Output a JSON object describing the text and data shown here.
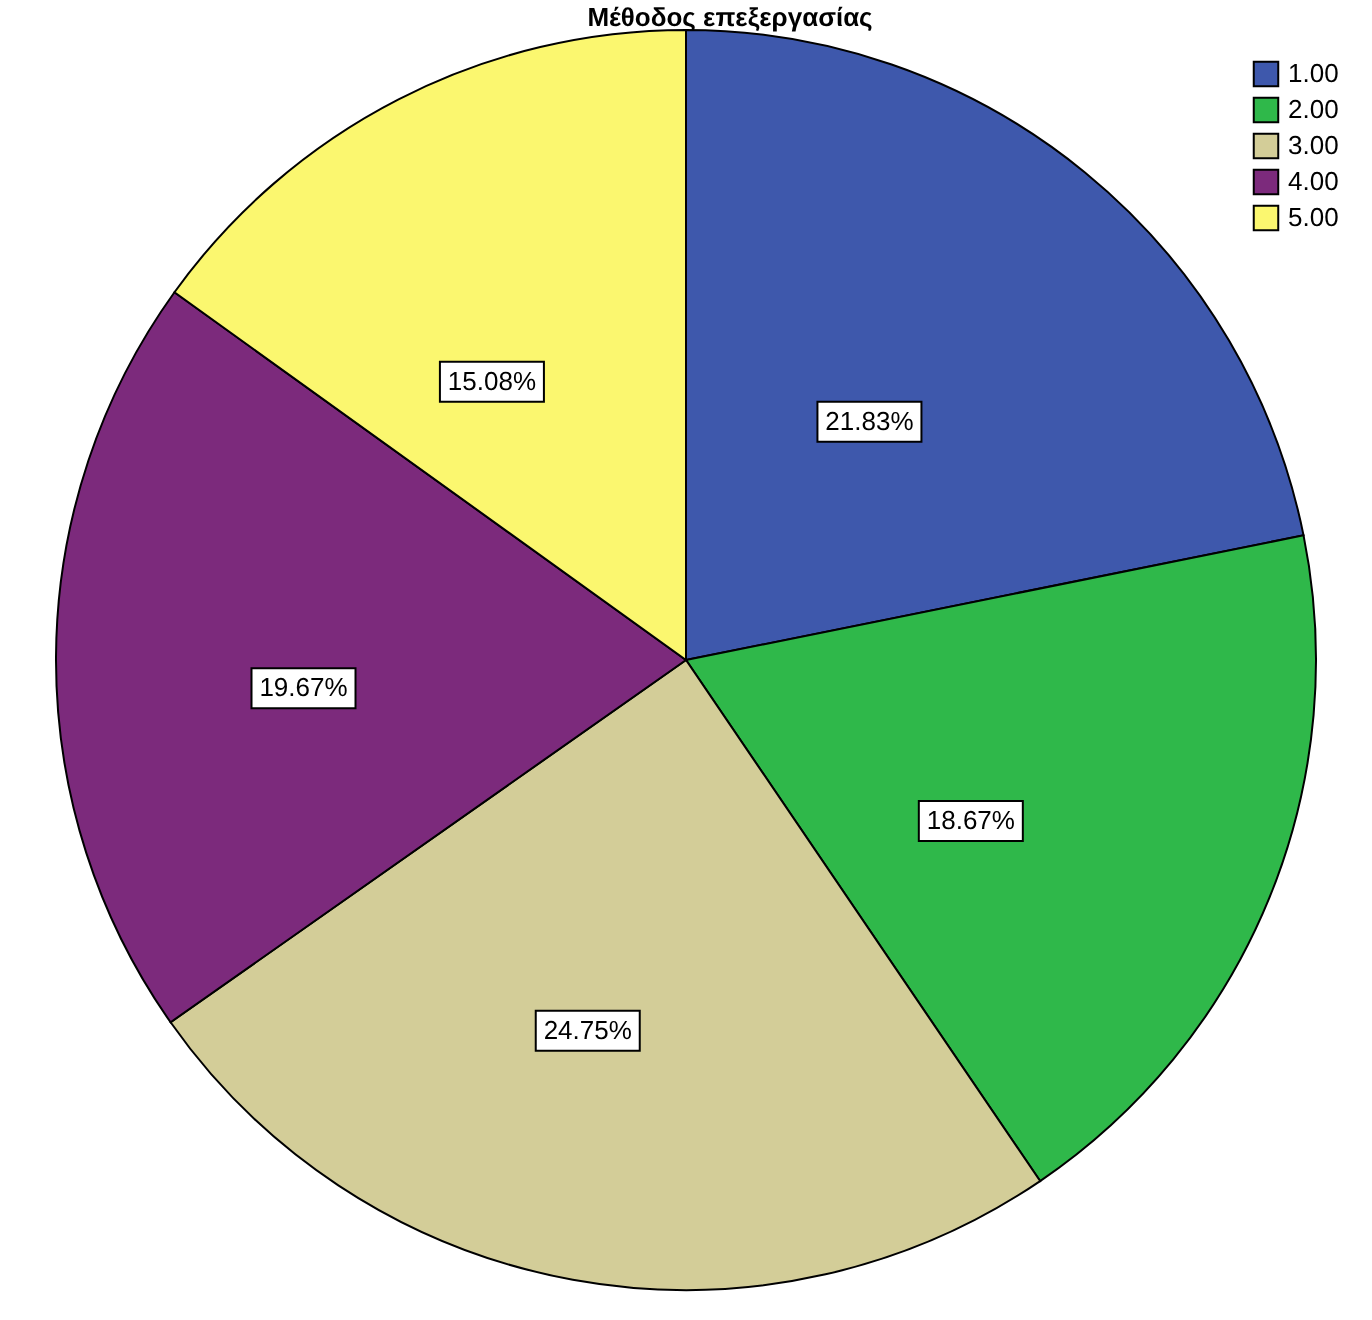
{
  "chart_data": {
    "type": "pie",
    "title": "Μέθοδος επεξεργασίας",
    "categories": [
      "1.00",
      "2.00",
      "3.00",
      "4.00",
      "5.00"
    ],
    "values": [
      21.83,
      18.67,
      24.75,
      19.67,
      15.08
    ],
    "colors": [
      "#3e58ac",
      "#2fb84a",
      "#d3cd98",
      "#7c2a7c",
      "#fbf76f"
    ],
    "value_labels": [
      "21.83%",
      "18.67%",
      "24.75%",
      "19.67%",
      "15.08%"
    ],
    "legend": "top right"
  }
}
